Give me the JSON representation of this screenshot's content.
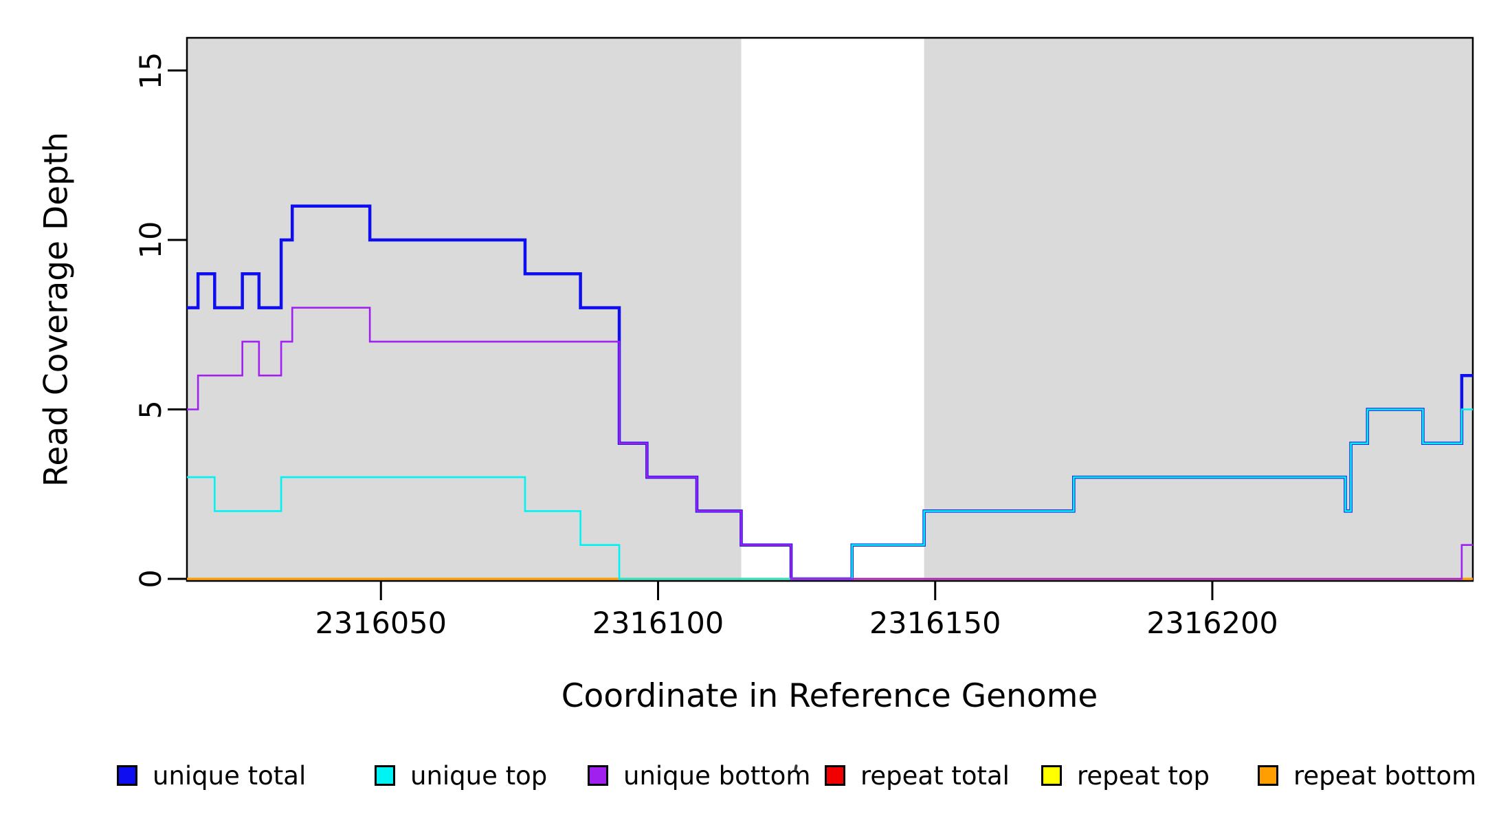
{
  "figure": {
    "background": "#ffffff",
    "band_color": "#DADADA",
    "axis_color": "#000000"
  },
  "chart_data": {
    "type": "line",
    "subtype": "step",
    "title": "",
    "xlabel": "Coordinate in Reference Genome",
    "ylabel": "Read Coverage Depth",
    "xlim": [
      2316015,
      2316247
    ],
    "ylim": [
      0,
      16
    ],
    "grid": false,
    "x_ticks": [
      2316050,
      2316100,
      2316150,
      2316200
    ],
    "x_tick_labels": [
      "2316050",
      "2316100",
      "2316150",
      "2316200"
    ],
    "y_ticks": [
      0,
      5,
      10,
      15
    ],
    "y_tick_labels": [
      "0",
      "5",
      "10",
      "15"
    ],
    "legend_position": "bottom",
    "shaded_regions": [
      {
        "x0": 2316015,
        "x1": 2316115,
        "color": "#DADADA"
      },
      {
        "x0": 2316148,
        "x1": 2316247,
        "color": "#DADADA"
      }
    ],
    "series": [
      {
        "name": "unique total",
        "color": "#0E0EF0",
        "line_width": 4.5,
        "points": [
          [
            2316015,
            8
          ],
          [
            2316017,
            9
          ],
          [
            2316020,
            8
          ],
          [
            2316025,
            9
          ],
          [
            2316028,
            8
          ],
          [
            2316032,
            10
          ],
          [
            2316034,
            11
          ],
          [
            2316048,
            10
          ],
          [
            2316076,
            9
          ],
          [
            2316086,
            8
          ],
          [
            2316093,
            4
          ],
          [
            2316098,
            3
          ],
          [
            2316107,
            2
          ],
          [
            2316115,
            1
          ],
          [
            2316124,
            0
          ],
          [
            2316135,
            1
          ],
          [
            2316148,
            2
          ],
          [
            2316175,
            3
          ],
          [
            2316224,
            2
          ],
          [
            2316225,
            4
          ],
          [
            2316228,
            5
          ],
          [
            2316238,
            4
          ],
          [
            2316245,
            6
          ],
          [
            2316247,
            6
          ]
        ]
      },
      {
        "name": "repeat total",
        "color": "#F00000",
        "line_width": 2.6,
        "points": [
          [
            2316015,
            0
          ],
          [
            2316247,
            0
          ]
        ]
      },
      {
        "name": "repeat top",
        "color": "#FFFF00",
        "line_width": 2.6,
        "points": [
          [
            2316015,
            0
          ],
          [
            2316247,
            0
          ]
        ]
      },
      {
        "name": "repeat bottom",
        "color": "#FF9E00",
        "line_width": 3.2,
        "points": [
          [
            2316015,
            0
          ],
          [
            2316247,
            0
          ]
        ]
      },
      {
        "name": "unique top",
        "color": "#00F3F3",
        "line_width": 2.6,
        "points": [
          [
            2316015,
            3
          ],
          [
            2316020,
            2
          ],
          [
            2316032,
            3
          ],
          [
            2316076,
            2
          ],
          [
            2316086,
            1
          ],
          [
            2316093,
            0
          ],
          [
            2316135,
            1
          ],
          [
            2316148,
            2
          ],
          [
            2316175,
            3
          ],
          [
            2316224,
            2
          ],
          [
            2316225,
            4
          ],
          [
            2316228,
            5
          ],
          [
            2316238,
            4
          ],
          [
            2316245,
            5
          ],
          [
            2316247,
            5
          ]
        ]
      },
      {
        "name": "unique bottom",
        "color": "#A020F0",
        "line_width": 2.6,
        "points": [
          [
            2316015,
            5
          ],
          [
            2316017,
            6
          ],
          [
            2316025,
            7
          ],
          [
            2316028,
            6
          ],
          [
            2316032,
            7
          ],
          [
            2316034,
            8
          ],
          [
            2316048,
            7
          ],
          [
            2316093,
            4
          ],
          [
            2316098,
            3
          ],
          [
            2316107,
            2
          ],
          [
            2316115,
            1
          ],
          [
            2316124,
            0
          ],
          [
            2316245,
            1
          ],
          [
            2316247,
            1
          ]
        ]
      }
    ]
  },
  "legend": {
    "items": [
      {
        "label": "unique total",
        "color": "#0E0EF0"
      },
      {
        "label": "unique top",
        "color": "#00F3F3"
      },
      {
        "label": "unique bottom",
        "color": "#A020F0"
      },
      {
        "label": "repeat total",
        "color": "#F00000"
      },
      {
        "label": "repeat top",
        "color": "#FFFF00"
      },
      {
        "label": "repeat bottom",
        "color": "#FF9E00"
      }
    ]
  }
}
